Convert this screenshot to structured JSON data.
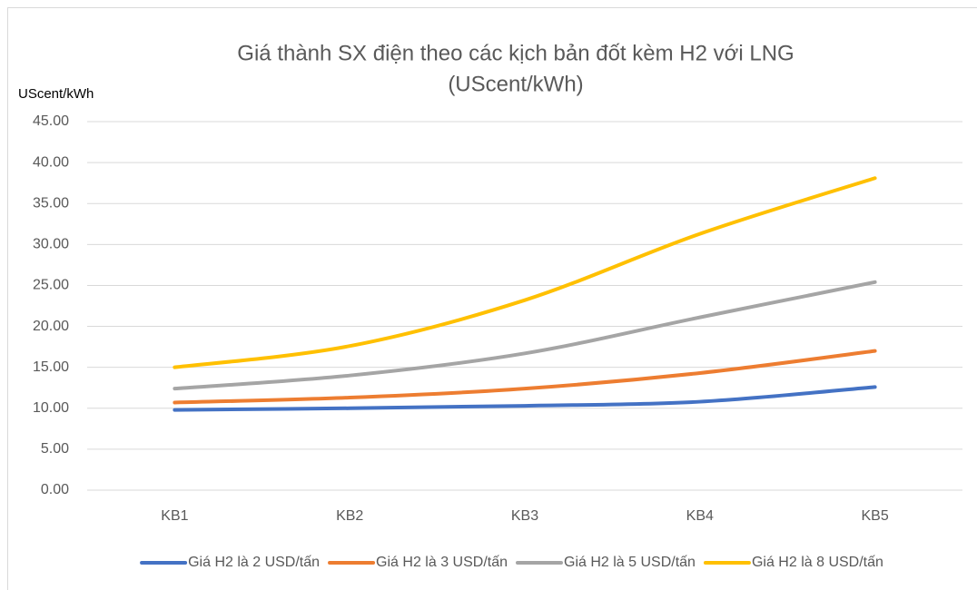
{
  "chart_data": {
    "type": "line",
    "title": [
      "Giá thành SX điện theo các kịch bản đốt kèm H2 với LNG",
      "(UScent/kWh)"
    ],
    "y_label": "UScent/kWh",
    "categories": [
      "KB1",
      "KB2",
      "KB3",
      "KB4",
      "KB5"
    ],
    "series": [
      {
        "name": "Giá H2 là 2 USD/tấn",
        "color": "#4472c4",
        "values": [
          9.8,
          10.0,
          10.3,
          10.8,
          12.6
        ]
      },
      {
        "name": "Giá H2 là 3 USD/tấn",
        "color": "#ed7d31",
        "values": [
          10.7,
          11.3,
          12.4,
          14.3,
          17.0
        ]
      },
      {
        "name": "Giá H2 là 5 USD/tấn",
        "color": "#a5a5a5",
        "values": [
          12.4,
          14.0,
          16.7,
          21.1,
          25.4
        ]
      },
      {
        "name": "Giá H2 là 8 USD/tấn",
        "color": "#ffc000",
        "values": [
          15.0,
          17.6,
          23.2,
          31.3,
          38.1
        ]
      }
    ],
    "ylim": [
      0,
      45
    ],
    "yticks": [
      {
        "value": 0,
        "label": "0.00"
      },
      {
        "value": 5,
        "label": "5.00"
      },
      {
        "value": 10,
        "label": "10.00"
      },
      {
        "value": 15,
        "label": "15.00"
      },
      {
        "value": 20,
        "label": "20.00"
      },
      {
        "value": 25,
        "label": "25.00"
      },
      {
        "value": 30,
        "label": "30.00"
      },
      {
        "value": 35,
        "label": "35.00"
      },
      {
        "value": 40,
        "label": "40.00"
      },
      {
        "value": 45,
        "label": "45.00"
      }
    ],
    "grid": true,
    "legend": "bottom"
  }
}
